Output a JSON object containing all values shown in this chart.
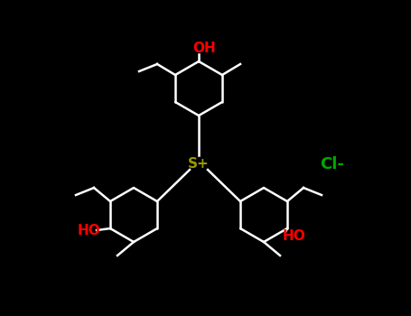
{
  "background_color": "#000000",
  "bond_color": "#ffffff",
  "oh_color": "#ff0000",
  "cl_color": "#00aa00",
  "sulfur_color": "#999900",
  "sulfur_label": "S+",
  "cl_label": "Cl-",
  "oh_label": "OH",
  "ho_label": "HO"
}
